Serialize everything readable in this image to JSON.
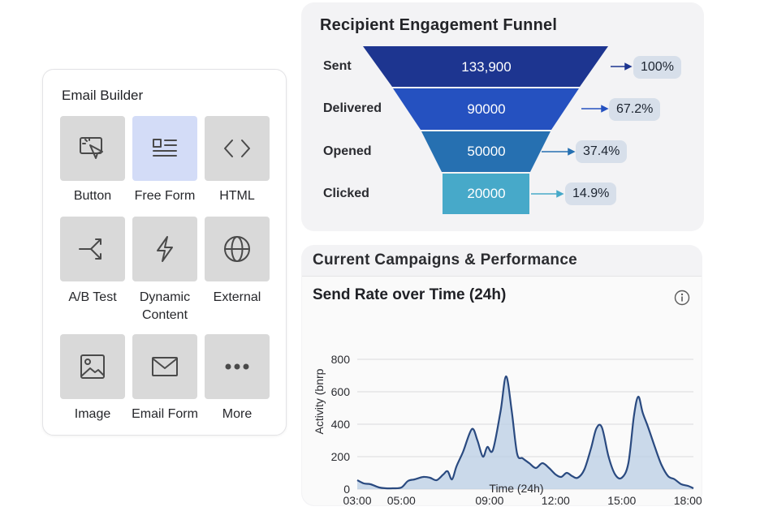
{
  "builder": {
    "title": "Email Builder",
    "tiles": [
      {
        "label": "Button",
        "icon": "cursor-click-icon",
        "active": false
      },
      {
        "label": "Free Form",
        "icon": "free-form-icon",
        "active": true
      },
      {
        "label": "HTML",
        "icon": "code-icon",
        "active": false
      },
      {
        "label": "A/B Test",
        "icon": "split-icon",
        "active": false
      },
      {
        "label": "Dynamic Content",
        "icon": "lightning-icon",
        "active": false
      },
      {
        "label": "External",
        "icon": "globe-icon",
        "active": false
      },
      {
        "label": "Image",
        "icon": "image-icon",
        "active": false
      },
      {
        "label": "Email Form",
        "icon": "envelope-icon",
        "active": false
      },
      {
        "label": "More",
        "icon": "more-icon",
        "active": false
      }
    ],
    "active_color": "#d3dcf7"
  },
  "funnel": {
    "title": "Recipient Engagement Funnel",
    "stages": [
      {
        "label": "Sent",
        "value": "133,900",
        "percent": "100%",
        "color": "#1d3590"
      },
      {
        "label": "Delivered",
        "value": "90000",
        "percent": "67.2%",
        "color": "#2551c0"
      },
      {
        "label": "Opened",
        "value": "50000",
        "percent": "37.4%",
        "color": "#2670b1"
      },
      {
        "label": "Clicked",
        "value": "20000",
        "percent": "14.9%",
        "color": "#47a9c9"
      }
    ]
  },
  "campaigns": {
    "title": "Current Campaigns & Performance",
    "chart_title": "Send Rate over Time (24h)",
    "info_icon": "info-icon"
  },
  "chart_data": {
    "type": "area",
    "title": "Send Rate over Time (24h)",
    "xlabel": "Time (24h)",
    "ylabel": "Activity (bnrp",
    "xlim": [
      3,
      18.25
    ],
    "ylim": [
      0,
      800
    ],
    "x_ticks": [
      "03:00",
      "05:00",
      "09:00",
      "12:00",
      "15:00",
      "18:00"
    ],
    "y_ticks": [
      "0",
      "200",
      "400",
      "600",
      "800"
    ],
    "grid": true,
    "line_color": "#2a4a80",
    "fill_color": "#b9cde4",
    "x": [
      3.0,
      3.3,
      3.6,
      4.0,
      4.3,
      4.6,
      5.0,
      5.3,
      5.6,
      6.0,
      6.3,
      6.6,
      6.9,
      7.1,
      7.3,
      7.5,
      7.8,
      8.2,
      8.45,
      8.7,
      8.9,
      9.15,
      9.5,
      9.75,
      10.0,
      10.25,
      10.5,
      10.8,
      11.1,
      11.4,
      11.7,
      12.0,
      12.25,
      12.5,
      12.75,
      13.0,
      13.3,
      13.6,
      13.85,
      14.1,
      14.4,
      14.7,
      15.0,
      15.3,
      15.55,
      15.75,
      15.95,
      16.2,
      16.5,
      16.8,
      17.1,
      17.4,
      17.7,
      18.0,
      18.25
    ],
    "y": [
      55,
      35,
      30,
      10,
      5,
      5,
      10,
      50,
      60,
      75,
      70,
      55,
      90,
      110,
      60,
      140,
      230,
      370,
      300,
      200,
      260,
      240,
      480,
      695,
      490,
      220,
      190,
      160,
      130,
      160,
      130,
      90,
      75,
      100,
      80,
      70,
      120,
      250,
      375,
      380,
      200,
      90,
      70,
      160,
      450,
      570,
      470,
      380,
      260,
      150,
      80,
      60,
      30,
      20,
      5
    ]
  }
}
